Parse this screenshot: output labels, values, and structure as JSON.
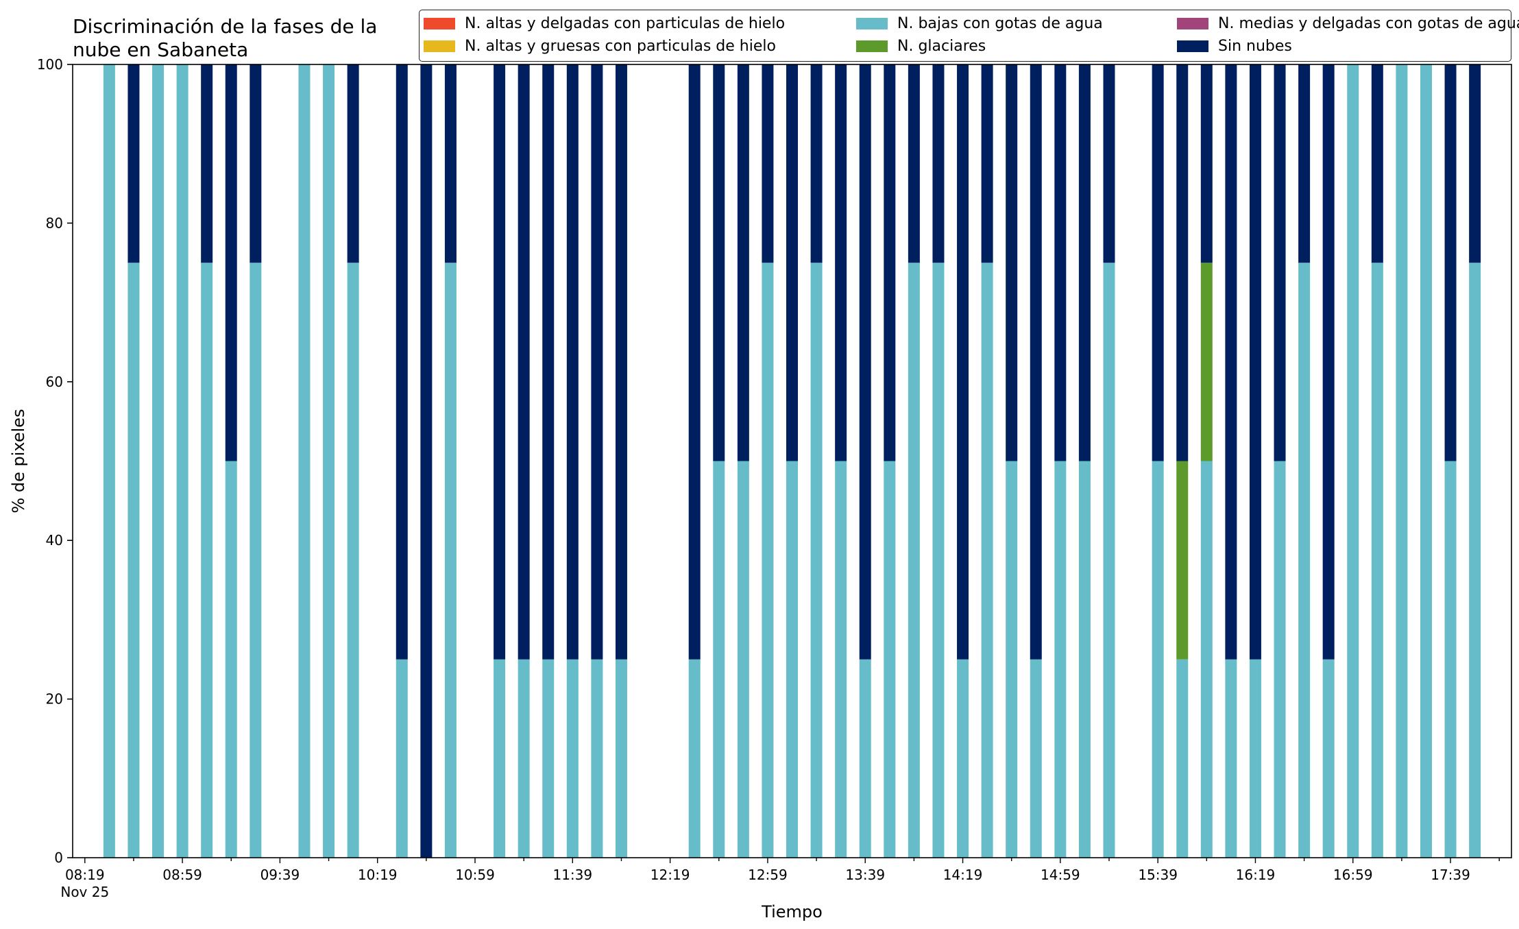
{
  "chart_data": {
    "type": "bar",
    "stacked": true,
    "title_lines": [
      "Discriminación de la fases de la",
      "nube en Sabaneta"
    ],
    "xlabel": "Tiempo",
    "ylabel": "% de pixeles",
    "ylim": [
      0,
      100
    ],
    "yticks": [
      0,
      20,
      40,
      60,
      80,
      100
    ],
    "x_unit": "minutes since 08:19 (Nov 25)",
    "xlim": [
      -5,
      585
    ],
    "xtick_labels": [
      {
        "m": 0,
        "label": "08:19",
        "sub": "Nov 25"
      },
      {
        "m": 40,
        "label": "08:59"
      },
      {
        "m": 80,
        "label": "09:39"
      },
      {
        "m": 120,
        "label": "10:19"
      },
      {
        "m": 160,
        "label": "10:59"
      },
      {
        "m": 200,
        "label": "11:39"
      },
      {
        "m": 240,
        "label": "12:19"
      },
      {
        "m": 280,
        "label": "12:59"
      },
      {
        "m": 320,
        "label": "13:39"
      },
      {
        "m": 360,
        "label": "14:19"
      },
      {
        "m": 400,
        "label": "14:59"
      },
      {
        "m": 440,
        "label": "15:39"
      },
      {
        "m": 480,
        "label": "16:19"
      },
      {
        "m": 520,
        "label": "16:59"
      },
      {
        "m": 560,
        "label": "17:39"
      }
    ],
    "grid": false,
    "legend_position": "top-right",
    "legend": [
      {
        "name": "N. altas y delgadas con particulas de hielo",
        "color": "#ee4a2b"
      },
      {
        "name": "N. altas y gruesas con particulas de hielo",
        "color": "#e6b81e"
      },
      {
        "name": "N. bajas con gotas de agua",
        "color": "#66bdc9"
      },
      {
        "name": "N. glaciares",
        "color": "#5c9a2b"
      },
      {
        "name": "N. medias y delgadas con gotas de agua",
        "color": "#a0447a"
      },
      {
        "name": "Sin nubes",
        "color": "#001f5f"
      }
    ],
    "stack_order": [
      "N. bajas con gotas de agua",
      "N. glaciares",
      "Sin nubes"
    ],
    "bars": [
      {
        "m": 10,
        "N. bajas con gotas de agua": 100,
        "N. glaciares": 0,
        "Sin nubes": 0
      },
      {
        "m": 20,
        "N. bajas con gotas de agua": 75,
        "N. glaciares": 0,
        "Sin nubes": 25
      },
      {
        "m": 30,
        "N. bajas con gotas de agua": 100,
        "N. glaciares": 0,
        "Sin nubes": 0
      },
      {
        "m": 40,
        "N. bajas con gotas de agua": 100,
        "N. glaciares": 0,
        "Sin nubes": 0
      },
      {
        "m": 50,
        "N. bajas con gotas de agua": 75,
        "N. glaciares": 0,
        "Sin nubes": 25
      },
      {
        "m": 60,
        "N. bajas con gotas de agua": 50,
        "N. glaciares": 0,
        "Sin nubes": 50
      },
      {
        "m": 70,
        "N. bajas con gotas de agua": 75,
        "N. glaciares": 0,
        "Sin nubes": 25
      },
      {
        "m": 90,
        "N. bajas con gotas de agua": 100,
        "N. glaciares": 0,
        "Sin nubes": 0
      },
      {
        "m": 100,
        "N. bajas con gotas de agua": 100,
        "N. glaciares": 0,
        "Sin nubes": 0
      },
      {
        "m": 110,
        "N. bajas con gotas de agua": 75,
        "N. glaciares": 0,
        "Sin nubes": 25
      },
      {
        "m": 130,
        "N. bajas con gotas de agua": 25,
        "N. glaciares": 0,
        "Sin nubes": 75
      },
      {
        "m": 140,
        "N. bajas con gotas de agua": 0,
        "N. glaciares": 0,
        "Sin nubes": 100
      },
      {
        "m": 150,
        "N. bajas con gotas de agua": 75,
        "N. glaciares": 0,
        "Sin nubes": 25
      },
      {
        "m": 170,
        "N. bajas con gotas de agua": 25,
        "N. glaciares": 0,
        "Sin nubes": 75
      },
      {
        "m": 180,
        "N. bajas con gotas de agua": 25,
        "N. glaciares": 0,
        "Sin nubes": 75
      },
      {
        "m": 190,
        "N. bajas con gotas de agua": 25,
        "N. glaciares": 0,
        "Sin nubes": 75
      },
      {
        "m": 200,
        "N. bajas con gotas de agua": 25,
        "N. glaciares": 0,
        "Sin nubes": 75
      },
      {
        "m": 210,
        "N. bajas con gotas de agua": 25,
        "N. glaciares": 0,
        "Sin nubes": 75
      },
      {
        "m": 220,
        "N. bajas con gotas de agua": 25,
        "N. glaciares": 0,
        "Sin nubes": 75
      },
      {
        "m": 250,
        "N. bajas con gotas de agua": 25,
        "N. glaciares": 0,
        "Sin nubes": 75
      },
      {
        "m": 260,
        "N. bajas con gotas de agua": 50,
        "N. glaciares": 0,
        "Sin nubes": 50
      },
      {
        "m": 270,
        "N. bajas con gotas de agua": 50,
        "N. glaciares": 0,
        "Sin nubes": 50
      },
      {
        "m": 280,
        "N. bajas con gotas de agua": 75,
        "N. glaciares": 0,
        "Sin nubes": 25
      },
      {
        "m": 290,
        "N. bajas con gotas de agua": 50,
        "N. glaciares": 0,
        "Sin nubes": 50
      },
      {
        "m": 300,
        "N. bajas con gotas de agua": 75,
        "N. glaciares": 0,
        "Sin nubes": 25
      },
      {
        "m": 310,
        "N. bajas con gotas de agua": 50,
        "N. glaciares": 0,
        "Sin nubes": 50
      },
      {
        "m": 320,
        "N. bajas con gotas de agua": 25,
        "N. glaciares": 0,
        "Sin nubes": 75
      },
      {
        "m": 330,
        "N. bajas con gotas de agua": 50,
        "N. glaciares": 0,
        "Sin nubes": 50
      },
      {
        "m": 340,
        "N. bajas con gotas de agua": 75,
        "N. glaciares": 0,
        "Sin nubes": 25
      },
      {
        "m": 350,
        "N. bajas con gotas de agua": 75,
        "N. glaciares": 0,
        "Sin nubes": 25
      },
      {
        "m": 360,
        "N. bajas con gotas de agua": 25,
        "N. glaciares": 0,
        "Sin nubes": 75
      },
      {
        "m": 370,
        "N. bajas con gotas de agua": 75,
        "N. glaciares": 0,
        "Sin nubes": 25
      },
      {
        "m": 380,
        "N. bajas con gotas de agua": 50,
        "N. glaciares": 0,
        "Sin nubes": 50
      },
      {
        "m": 390,
        "N. bajas con gotas de agua": 25,
        "N. glaciares": 0,
        "Sin nubes": 75
      },
      {
        "m": 400,
        "N. bajas con gotas de agua": 50,
        "N. glaciares": 0,
        "Sin nubes": 50
      },
      {
        "m": 410,
        "N. bajas con gotas de agua": 50,
        "N. glaciares": 0,
        "Sin nubes": 50
      },
      {
        "m": 420,
        "N. bajas con gotas de agua": 75,
        "N. glaciares": 0,
        "Sin nubes": 25
      },
      {
        "m": 440,
        "N. bajas con gotas de agua": 50,
        "N. glaciares": 0,
        "Sin nubes": 50
      },
      {
        "m": 450,
        "N. bajas con gotas de agua": 25,
        "N. glaciares": 25,
        "Sin nubes": 50
      },
      {
        "m": 460,
        "N. bajas con gotas de agua": 50,
        "N. glaciares": 25,
        "Sin nubes": 25
      },
      {
        "m": 470,
        "N. bajas con gotas de agua": 25,
        "N. glaciares": 0,
        "Sin nubes": 75
      },
      {
        "m": 480,
        "N. bajas con gotas de agua": 25,
        "N. glaciares": 0,
        "Sin nubes": 75
      },
      {
        "m": 490,
        "N. bajas con gotas de agua": 50,
        "N. glaciares": 0,
        "Sin nubes": 50
      },
      {
        "m": 500,
        "N. bajas con gotas de agua": 75,
        "N. glaciares": 0,
        "Sin nubes": 25
      },
      {
        "m": 510,
        "N. bajas con gotas de agua": 25,
        "N. glaciares": 0,
        "Sin nubes": 75
      },
      {
        "m": 520,
        "N. bajas con gotas de agua": 100,
        "N. glaciares": 0,
        "Sin nubes": 0
      },
      {
        "m": 530,
        "N. bajas con gotas de agua": 75,
        "N. glaciares": 0,
        "Sin nubes": 25
      },
      {
        "m": 540,
        "N. bajas con gotas de agua": 100,
        "N. glaciares": 0,
        "Sin nubes": 0
      },
      {
        "m": 550,
        "N. bajas con gotas de agua": 100,
        "N. glaciares": 0,
        "Sin nubes": 0
      },
      {
        "m": 560,
        "N. bajas con gotas de agua": 50,
        "N. glaciares": 0,
        "Sin nubes": 50
      },
      {
        "m": 570,
        "N. bajas con gotas de agua": 75,
        "N. glaciares": 0,
        "Sin nubes": 25
      }
    ]
  }
}
